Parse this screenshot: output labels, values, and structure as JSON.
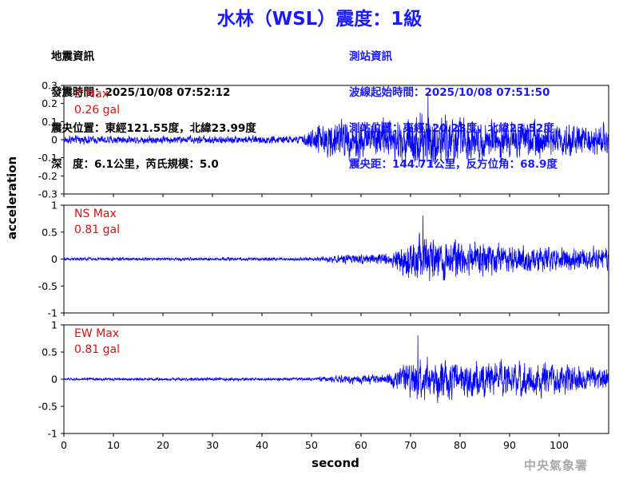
{
  "title": "水林（WSL）震度：1級",
  "quake_info": {
    "heading": "地震資訊",
    "origin_time": "發震時間：2025/10/08 07:52:12",
    "epicenter": "震央位置：東經121.55度，北緯23.99度",
    "depth_magnitude": "深　度：6.1公里，芮氏規模：5.0"
  },
  "station_info": {
    "heading": "測站資訊",
    "wave_start": "波線起始時間：2025/10/08 07:51:50",
    "location": "測站位置：東經120.23度，北緯23.52度",
    "distance": "震央距：144.71公里，反方位角：68.9度"
  },
  "ylabel": "acceleration",
  "xlabel": "second",
  "agency": "中央氣象署",
  "colors": {
    "trace": "#0000ff",
    "max_label": "#e01010",
    "title": "#1a1aff"
  },
  "chart_data": [
    {
      "type": "line",
      "component": "Z",
      "max_label_line1": "Z Max",
      "max_label_line2": "0.26 gal",
      "x_range": [
        0,
        110
      ],
      "ylim": [
        -0.3,
        0.3
      ],
      "yticks": [
        "0.3",
        "0.2",
        "0.1",
        "0",
        "-0.1",
        "-0.2",
        "-0.3"
      ],
      "ytick_values": [
        0.3,
        0.2,
        0.1,
        0,
        -0.1,
        -0.2,
        -0.3
      ],
      "envelope": [
        {
          "t": 0,
          "amp": 0.03
        },
        {
          "t": 48,
          "amp": 0.03
        },
        {
          "t": 52,
          "amp": 0.14
        },
        {
          "t": 60,
          "amp": 0.15
        },
        {
          "t": 66,
          "amp": 0.15
        },
        {
          "t": 70,
          "amp": 0.19
        },
        {
          "t": 74,
          "amp": 0.2
        },
        {
          "t": 85,
          "amp": 0.15
        },
        {
          "t": 110,
          "amp": 0.11
        }
      ],
      "peak": {
        "t": 73.5,
        "value": 0.26
      }
    },
    {
      "type": "line",
      "component": "NS",
      "max_label_line1": "NS Max",
      "max_label_line2": "0.81 gal",
      "x_range": [
        0,
        110
      ],
      "ylim": [
        -1,
        1
      ],
      "yticks": [
        "1",
        "0.5",
        "0",
        "-0.5",
        "-1"
      ],
      "ytick_values": [
        1,
        0.5,
        0,
        -0.5,
        -1
      ],
      "envelope": [
        {
          "t": 0,
          "amp": 0.04
        },
        {
          "t": 50,
          "amp": 0.04
        },
        {
          "t": 56,
          "amp": 0.1
        },
        {
          "t": 66,
          "amp": 0.15
        },
        {
          "t": 69,
          "amp": 0.4
        },
        {
          "t": 72,
          "amp": 0.6
        },
        {
          "t": 78,
          "amp": 0.5
        },
        {
          "t": 90,
          "amp": 0.35
        },
        {
          "t": 110,
          "amp": 0.3
        }
      ],
      "peak": {
        "t": 72.5,
        "value": 0.81
      }
    },
    {
      "type": "line",
      "component": "EW",
      "max_label_line1": "EW Max",
      "max_label_line2": "0.81 gal",
      "x_range": [
        0,
        110
      ],
      "ylim": [
        -1,
        1
      ],
      "yticks": [
        "1",
        "0.5",
        "0",
        "-0.5",
        "-1"
      ],
      "ytick_values": [
        1,
        0.5,
        0,
        -0.5,
        -1
      ],
      "envelope": [
        {
          "t": 0,
          "amp": 0.03
        },
        {
          "t": 50,
          "amp": 0.04
        },
        {
          "t": 56,
          "amp": 0.1
        },
        {
          "t": 66,
          "amp": 0.14
        },
        {
          "t": 69,
          "amp": 0.45
        },
        {
          "t": 72,
          "amp": 0.55
        },
        {
          "t": 80,
          "amp": 0.45
        },
        {
          "t": 90,
          "amp": 0.45
        },
        {
          "t": 110,
          "amp": 0.3
        }
      ],
      "peak": {
        "t": 71.5,
        "value": 0.81
      }
    }
  ],
  "x_axis": {
    "ticks": [
      0,
      10,
      20,
      30,
      40,
      50,
      60,
      70,
      80,
      90,
      100
    ],
    "tick_labels": [
      "0",
      "10",
      "20",
      "30",
      "40",
      "50",
      "60",
      "70",
      "80",
      "90",
      "100"
    ]
  }
}
